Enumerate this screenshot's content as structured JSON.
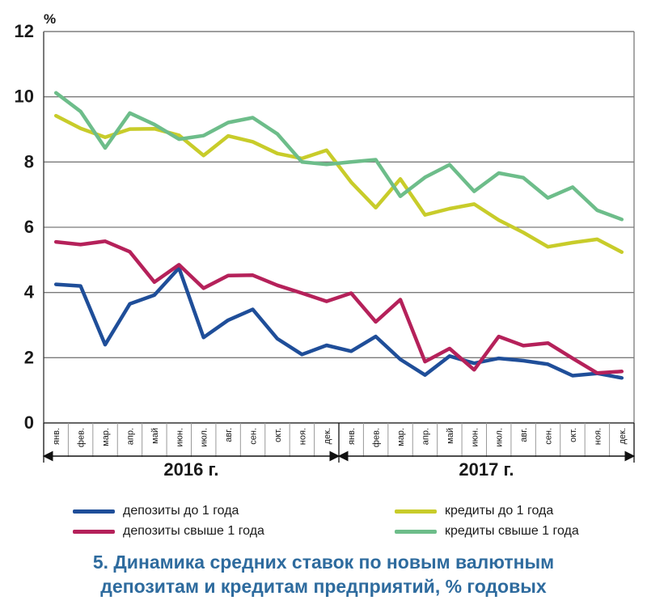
{
  "chart_data": {
    "type": "line",
    "unit": "%",
    "ylim": [
      0,
      12
    ],
    "yticks": [
      "0",
      "2",
      "4",
      "6",
      "8",
      "10",
      "12"
    ],
    "categories": [
      "янв.",
      "фев.",
      "мар.",
      "апр.",
      "май",
      "июн.",
      "июл.",
      "авг.",
      "сен.",
      "окт.",
      "ноя.",
      "дек.",
      "янв.",
      "фев.",
      "мар.",
      "апр.",
      "май",
      "июн.",
      "июл.",
      "авг.",
      "сен.",
      "окт.",
      "ноя.",
      "дек."
    ],
    "years": [
      "2016 г.",
      "2017 г."
    ],
    "grid": true,
    "legend_position": "bottom",
    "series": [
      {
        "name": "депозиты до 1 года",
        "color": "#1f4e99",
        "values": [
          4.25,
          4.2,
          2.4,
          3.65,
          3.92,
          4.75,
          2.62,
          3.15,
          3.48,
          2.58,
          2.1,
          2.38,
          2.2,
          2.65,
          1.95,
          1.47,
          2.05,
          1.83,
          1.98,
          1.91,
          1.8,
          1.45,
          1.52,
          1.38
        ]
      },
      {
        "name": "депозиты свыше 1 года",
        "color": "#b5215a",
        "values": [
          5.55,
          5.47,
          5.57,
          5.25,
          4.32,
          4.85,
          4.13,
          4.52,
          4.53,
          4.22,
          3.98,
          3.73,
          3.98,
          3.1,
          3.78,
          1.88,
          2.28,
          1.63,
          2.65,
          2.37,
          2.45,
          1.98,
          1.53,
          1.58
        ]
      },
      {
        "name": "кредиты до 1 года",
        "color": "#c8cc2a",
        "values": [
          9.42,
          9.03,
          8.76,
          9.01,
          9.02,
          8.82,
          8.2,
          8.8,
          8.62,
          8.26,
          8.11,
          8.36,
          7.38,
          6.6,
          7.48,
          6.38,
          6.57,
          6.71,
          6.22,
          5.84,
          5.4,
          5.53,
          5.63,
          5.24
        ]
      },
      {
        "name": "кредиты свыше 1 года",
        "color": "#6dbd8a",
        "values": [
          10.12,
          9.55,
          8.43,
          9.5,
          9.15,
          8.7,
          8.81,
          9.21,
          9.36,
          8.86,
          8.0,
          7.93,
          8.0,
          8.07,
          6.95,
          7.53,
          7.92,
          7.1,
          7.66,
          7.52,
          6.9,
          7.23,
          6.52,
          6.24
        ]
      }
    ]
  },
  "caption": {
    "line1": "5. Динамика средних ставок по новым валютным",
    "line2": "депозитам и кредитам предприятий, % годовых"
  }
}
